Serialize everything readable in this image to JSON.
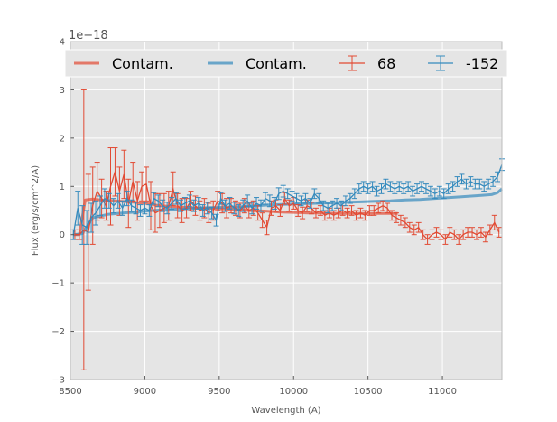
{
  "chart_data": {
    "type": "line",
    "xlabel": "Wavelength (A)",
    "ylabel": "Flux (erg/s/cm^2/A)",
    "y_offset_text": "1e−18",
    "xlim": [
      8500,
      11400
    ],
    "ylim": [
      -3,
      4
    ],
    "x_ticks": [
      8500,
      9000,
      9500,
      10000,
      10500,
      11000
    ],
    "y_ticks": [
      -3,
      -2,
      -1,
      0,
      1,
      2,
      3,
      4
    ],
    "x_tick_labels": [
      "8500",
      "9000",
      "9500",
      "10000",
      "10500",
      "11000"
    ],
    "y_tick_labels": [
      "−3",
      "−2",
      "−1",
      "0",
      "1",
      "2",
      "3",
      "4"
    ],
    "grid": true,
    "legend_position": "top",
    "colors": {
      "red": "#e24a33",
      "blue": "#348abd",
      "background": "#e5e5e5"
    },
    "series": [
      {
        "name": "Contam.",
        "kind": "line",
        "color": "#e24a33",
        "x": [
          8520,
          8560,
          8600,
          8650,
          8700,
          8800,
          8900,
          9000,
          9100,
          9200,
          9300,
          9400,
          9500,
          9600,
          9700,
          9800,
          9900,
          10000,
          10100,
          10200,
          10300,
          10400,
          10500,
          10600,
          10700
        ],
        "y": [
          0.0,
          0.0,
          0.72,
          0.74,
          0.72,
          0.7,
          0.68,
          0.65,
          0.6,
          0.58,
          0.56,
          0.55,
          0.54,
          0.52,
          0.5,
          0.49,
          0.47,
          0.46,
          0.45,
          0.45,
          0.44,
          0.44,
          0.44,
          0.44,
          0.44
        ]
      },
      {
        "name": "Contam.",
        "kind": "line",
        "color": "#348abd",
        "x": [
          8520,
          8580,
          8650,
          8750,
          8850,
          8950,
          9050,
          9150,
          9250,
          9350,
          9450,
          9550,
          9650,
          9750,
          9850,
          9950,
          10050,
          10150,
          10250,
          10350,
          10450,
          10550,
          10650,
          10750,
          10850,
          10950,
          11050,
          11150,
          11250,
          11330,
          11370,
          11400
        ],
        "y": [
          0.0,
          0.02,
          0.35,
          0.42,
          0.45,
          0.47,
          0.5,
          0.52,
          0.53,
          0.55,
          0.56,
          0.57,
          0.58,
          0.6,
          0.62,
          0.63,
          0.64,
          0.65,
          0.66,
          0.67,
          0.68,
          0.69,
          0.7,
          0.72,
          0.73,
          0.75,
          0.77,
          0.79,
          0.81,
          0.83,
          0.87,
          0.95
        ]
      },
      {
        "name": "68",
        "kind": "errorbar",
        "color": "#e24a33",
        "x": [
          8530,
          8560,
          8590,
          8620,
          8650,
          8680,
          8710,
          8740,
          8770,
          8800,
          8830,
          8860,
          8890,
          8920,
          8950,
          8980,
          9010,
          9040,
          9070,
          9100,
          9130,
          9160,
          9190,
          9220,
          9250,
          9280,
          9310,
          9340,
          9370,
          9400,
          9430,
          9460,
          9490,
          9520,
          9550,
          9580,
          9610,
          9640,
          9670,
          9700,
          9730,
          9760,
          9790,
          9820,
          9850,
          9880,
          9910,
          9940,
          9970,
          10000,
          10030,
          10060,
          10090,
          10120,
          10150,
          10180,
          10210,
          10240,
          10270,
          10300,
          10330,
          10360,
          10390,
          10420,
          10450,
          10480,
          10510,
          10540,
          10570,
          10600,
          10630,
          10660,
          10690,
          10720,
          10750,
          10780,
          10810,
          10840,
          10870,
          10900,
          10930,
          10960,
          10990,
          11020,
          11050,
          11080,
          11110,
          11140,
          11170,
          11200,
          11230,
          11260,
          11290,
          11320,
          11350,
          11380
        ],
        "y": [
          0.0,
          0.0,
          0.1,
          0.05,
          0.6,
          0.9,
          0.75,
          0.6,
          1.0,
          1.3,
          0.9,
          1.25,
          0.65,
          1.1,
          0.7,
          1.0,
          1.05,
          0.6,
          0.45,
          0.5,
          0.55,
          0.6,
          0.95,
          0.6,
          0.5,
          0.55,
          0.7,
          0.6,
          0.5,
          0.55,
          0.45,
          0.5,
          0.7,
          0.65,
          0.55,
          0.6,
          0.55,
          0.5,
          0.6,
          0.5,
          0.55,
          0.45,
          0.3,
          0.15,
          0.55,
          0.6,
          0.5,
          0.75,
          0.6,
          0.65,
          0.5,
          0.45,
          0.6,
          0.55,
          0.45,
          0.5,
          0.4,
          0.45,
          0.4,
          0.45,
          0.5,
          0.45,
          0.5,
          0.4,
          0.45,
          0.4,
          0.5,
          0.5,
          0.55,
          0.6,
          0.55,
          0.4,
          0.35,
          0.3,
          0.25,
          0.15,
          0.1,
          0.15,
          0.0,
          -0.1,
          0.0,
          0.05,
          0.0,
          -0.1,
          0.05,
          0.0,
          -0.1,
          0.0,
          0.05,
          0.05,
          0.0,
          0.05,
          -0.05,
          0.1,
          0.25,
          0.05
        ],
        "err": [
          0.1,
          0.1,
          2.9,
          1.2,
          0.8,
          0.6,
          0.4,
          0.3,
          0.8,
          0.5,
          0.5,
          0.5,
          0.5,
          0.4,
          0.4,
          0.3,
          0.35,
          0.5,
          0.4,
          0.35,
          0.3,
          0.3,
          0.35,
          0.25,
          0.25,
          0.2,
          0.2,
          0.2,
          0.2,
          0.2,
          0.2,
          0.2,
          0.2,
          0.2,
          0.2,
          0.15,
          0.15,
          0.15,
          0.15,
          0.15,
          0.15,
          0.15,
          0.15,
          0.15,
          0.15,
          0.12,
          0.12,
          0.12,
          0.12,
          0.12,
          0.12,
          0.12,
          0.12,
          0.12,
          0.1,
          0.1,
          0.1,
          0.1,
          0.1,
          0.1,
          0.1,
          0.1,
          0.1,
          0.1,
          0.1,
          0.1,
          0.1,
          0.1,
          0.1,
          0.1,
          0.1,
          0.1,
          0.1,
          0.1,
          0.1,
          0.1,
          0.1,
          0.1,
          0.1,
          0.1,
          0.1,
          0.1,
          0.1,
          0.1,
          0.1,
          0.1,
          0.1,
          0.1,
          0.1,
          0.1,
          0.1,
          0.1,
          0.1,
          0.1,
          0.15,
          0.1
        ]
      },
      {
        "name": "-152",
        "kind": "errorbar",
        "color": "#348abd",
        "x": [
          8520,
          8550,
          8580,
          8610,
          8640,
          8670,
          8700,
          8730,
          8760,
          8790,
          8820,
          8850,
          8880,
          8910,
          8940,
          8970,
          9000,
          9030,
          9060,
          9090,
          9120,
          9150,
          9180,
          9210,
          9240,
          9270,
          9300,
          9330,
          9360,
          9390,
          9420,
          9450,
          9480,
          9510,
          9540,
          9570,
          9600,
          9630,
          9660,
          9690,
          9720,
          9750,
          9780,
          9810,
          9840,
          9870,
          9900,
          9930,
          9960,
          9990,
          10020,
          10050,
          10080,
          10110,
          10140,
          10170,
          10200,
          10230,
          10260,
          10290,
          10320,
          10350,
          10380,
          10410,
          10440,
          10470,
          10500,
          10530,
          10560,
          10590,
          10620,
          10650,
          10680,
          10710,
          10740,
          10770,
          10800,
          10830,
          10860,
          10890,
          10920,
          10950,
          10980,
          11010,
          11040,
          11070,
          11100,
          11130,
          11160,
          11190,
          11220,
          11250,
          11280,
          11310,
          11340,
          11370,
          11400
        ],
        "y": [
          0.0,
          0.55,
          0.2,
          0.15,
          0.35,
          0.45,
          0.6,
          0.75,
          0.7,
          0.6,
          0.7,
          0.55,
          0.75,
          0.6,
          0.55,
          0.5,
          0.55,
          0.5,
          0.75,
          0.7,
          0.6,
          0.55,
          0.65,
          0.75,
          0.6,
          0.65,
          0.7,
          0.6,
          0.65,
          0.5,
          0.55,
          0.45,
          0.3,
          0.75,
          0.6,
          0.65,
          0.55,
          0.5,
          0.6,
          0.7,
          0.55,
          0.65,
          0.6,
          0.75,
          0.7,
          0.65,
          0.85,
          0.9,
          0.85,
          0.8,
          0.75,
          0.7,
          0.75,
          0.65,
          0.85,
          0.75,
          0.6,
          0.55,
          0.6,
          0.65,
          0.6,
          0.7,
          0.75,
          0.85,
          0.95,
          1.0,
          0.95,
          1.0,
          0.9,
          0.95,
          1.05,
          1.0,
          0.95,
          1.0,
          0.95,
          1.0,
          0.9,
          0.95,
          1.0,
          0.95,
          0.9,
          0.85,
          0.9,
          0.85,
          0.95,
          1.0,
          1.1,
          1.15,
          1.05,
          1.1,
          1.05,
          1.05,
          1.0,
          1.05,
          1.1,
          1.2,
          1.45
        ],
        "err": [
          0.1,
          0.35,
          0.4,
          0.35,
          0.3,
          0.25,
          0.2,
          0.2,
          0.15,
          0.15,
          0.15,
          0.15,
          0.15,
          0.12,
          0.12,
          0.12,
          0.12,
          0.12,
          0.12,
          0.12,
          0.12,
          0.12,
          0.12,
          0.12,
          0.12,
          0.12,
          0.12,
          0.12,
          0.12,
          0.12,
          0.12,
          0.12,
          0.12,
          0.12,
          0.12,
          0.12,
          0.12,
          0.12,
          0.12,
          0.12,
          0.12,
          0.12,
          0.12,
          0.12,
          0.12,
          0.12,
          0.12,
          0.12,
          0.1,
          0.1,
          0.1,
          0.1,
          0.1,
          0.1,
          0.1,
          0.1,
          0.1,
          0.1,
          0.1,
          0.1,
          0.1,
          0.1,
          0.1,
          0.1,
          0.1,
          0.1,
          0.1,
          0.1,
          0.1,
          0.1,
          0.1,
          0.1,
          0.1,
          0.1,
          0.1,
          0.1,
          0.1,
          0.1,
          0.1,
          0.1,
          0.1,
          0.1,
          0.1,
          0.1,
          0.1,
          0.1,
          0.1,
          0.1,
          0.1,
          0.1,
          0.1,
          0.1,
          0.1,
          0.1,
          0.1,
          0.1,
          0.12
        ]
      }
    ]
  }
}
